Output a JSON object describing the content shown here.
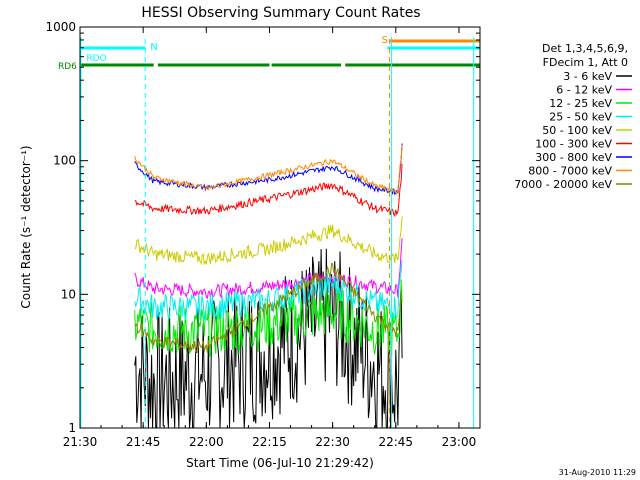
{
  "chart_data": {
    "type": "line",
    "title": "HESSI Observing Summary Count Rates",
    "xlabel": "Start Time (06-Jul-10 21:29:42)",
    "ylabel": "Count Rate (s⁻¹ detector⁻¹)",
    "y_scale": "log",
    "ylim": [
      1,
      1000
    ],
    "xlim_minutes_since_2130": [
      0,
      95
    ],
    "x_ticks": [
      {
        "label": "21:30",
        "min": 0
      },
      {
        "label": "21:45",
        "min": 15
      },
      {
        "label": "22:00",
        "min": 30
      },
      {
        "label": "22:15",
        "min": 45
      },
      {
        "label": "22:30",
        "min": 60
      },
      {
        "label": "22:45",
        "min": 75
      },
      {
        "label": "23:00",
        "min": 90
      }
    ],
    "y_ticks": [
      {
        "label": "1",
        "value": 1
      },
      {
        "label": "10",
        "value": 10
      },
      {
        "label": "100",
        "value": 100
      },
      {
        "label": "1000",
        "value": 1000
      }
    ],
    "legend": {
      "header": [
        "Det 1,3,4,5,6,9,",
        "FDecim 1, Att 0"
      ],
      "placement": "right"
    },
    "series": [
      {
        "name": "3 - 6 keV",
        "color": "#000000",
        "day": [
          3.0,
          2.2,
          2.6,
          4.0,
          7.0,
          3.0,
          2.0
        ],
        "noise": 0.55
      },
      {
        "name": "6 - 12 keV",
        "color": "#ff00ff",
        "day": [
          13.0,
          11.0,
          10.5,
          11.5,
          13.5,
          11.5,
          10.5
        ],
        "noise": 0.05
      },
      {
        "name": "12 - 25 keV",
        "color": "#00ee00",
        "day": [
          6.0,
          5.5,
          5.3,
          6.0,
          7.5,
          5.5,
          5.0
        ],
        "noise": 0.2
      },
      {
        "name": "25 - 50 keV",
        "color": "#00eeee",
        "day": [
          9.5,
          8.0,
          8.0,
          9.0,
          12.0,
          8.5,
          8.0
        ],
        "noise": 0.1
      },
      {
        "name": "50 - 100 keV",
        "color": "#cccc00",
        "day": [
          24.0,
          20.0,
          18.5,
          22.0,
          30.0,
          20.0,
          18.0
        ],
        "noise": 0.05
      },
      {
        "name": "100 - 300 keV",
        "color": "#ff0000",
        "day": [
          50.0,
          44.0,
          42.0,
          52.0,
          66.0,
          44.0,
          40.0
        ],
        "noise": 0.03
      },
      {
        "name": "300 - 800 keV",
        "color": "#0000ff",
        "day": [
          95.0,
          70.0,
          63.0,
          72.0,
          90.0,
          62.0,
          58.0
        ],
        "noise": 0.02
      },
      {
        "name": "800 - 7000 keV",
        "color": "#ff8800",
        "day": [
          105.0,
          75.0,
          62.0,
          78.0,
          100.0,
          65.0,
          58.0
        ],
        "noise": 0.02
      },
      {
        "name": "7000 - 20000 keV",
        "color": "#888800",
        "day": [
          6.0,
          4.5,
          4.0,
          8.0,
          15.5,
          7.0,
          5.0
        ],
        "noise": 0.05
      }
    ],
    "flags": [
      {
        "label": "RDO",
        "color": "#00ffff",
        "segments": [
          [
            0,
            15.5
          ]
        ]
      },
      {
        "label": "RD6",
        "color": "#008800",
        "segments": [
          [
            0,
            17.5
          ],
          [
            18.5,
            45
          ],
          [
            45.5,
            62
          ],
          [
            63,
            95
          ]
        ]
      },
      {
        "label": "",
        "color": "#00ffff",
        "segments": [
          [
            73,
            95
          ]
        ]
      },
      {
        "label": "",
        "color": "#ff8800",
        "segments": [
          [
            73.5,
            95
          ]
        ]
      }
    ],
    "markers": [
      {
        "label": "N",
        "min": 15.5,
        "color": "#00ffff"
      },
      {
        "label": "S",
        "min": 73.5,
        "color": "#ff8800"
      }
    ]
  },
  "footer": {
    "timestamp": "31-Aug-2010 11:29"
  }
}
